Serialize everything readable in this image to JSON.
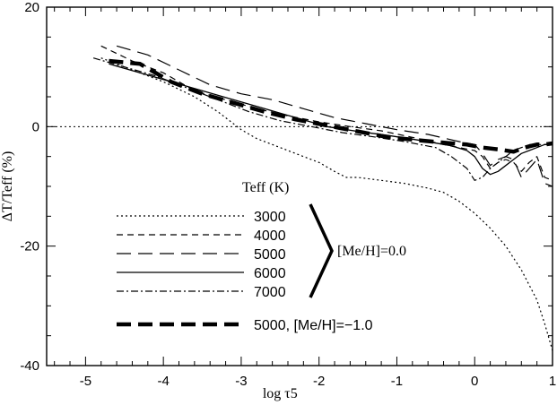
{
  "chart_data": {
    "type": "line",
    "xlabel": "log τ5",
    "ylabel": "ΔT/Teff (%)",
    "xlim": [
      -5.5,
      1.0
    ],
    "ylim": [
      -40,
      20
    ],
    "x_ticks": [
      -5,
      -4,
      -3,
      -2,
      -1,
      0,
      1
    ],
    "y_ticks": [
      20,
      0,
      -20,
      -40
    ],
    "reference_line": 0,
    "legend_title": "Teff (K)",
    "legend_group_label": "[Me/H]=0.0",
    "series": [
      {
        "name": "3000",
        "style": "dotted",
        "x": [
          -4.8,
          -4.4,
          -4.0,
          -3.6,
          -3.3,
          -3.0,
          -2.8,
          -2.6,
          -2.4,
          -2.2,
          -2.0,
          -1.8,
          -1.65,
          -1.5,
          -1.2,
          -0.9,
          -0.6,
          -0.4,
          -0.2,
          0.0,
          0.2,
          0.4,
          0.6,
          0.8,
          0.9,
          1.0
        ],
        "y": [
          11.5,
          9.5,
          7.5,
          5.0,
          2.5,
          -0.5,
          -2.0,
          -3.0,
          -4.0,
          -5.0,
          -6.0,
          -7.5,
          -8.5,
          -8.5,
          -9.0,
          -9.5,
          -10.3,
          -11.0,
          -12.5,
          -14.5,
          -17.0,
          -20.0,
          -24.0,
          -29.0,
          -33.0,
          -37.5
        ]
      },
      {
        "name": "4000",
        "style": "short-dash",
        "x": [
          -4.8,
          -4.4,
          -4.0,
          -3.6,
          -3.2,
          -2.8,
          -2.4,
          -2.0,
          -1.6,
          -1.2,
          -0.8,
          -0.4,
          -0.2,
          0.0,
          0.1,
          0.2,
          0.3,
          0.4,
          0.5,
          0.6,
          0.7,
          0.8,
          0.9,
          1.0
        ],
        "y": [
          13.5,
          11.0,
          9.0,
          6.0,
          4.5,
          3.0,
          1.8,
          0.8,
          0.0,
          -0.7,
          -1.8,
          -3.0,
          -3.5,
          -4.0,
          -5.0,
          -7.0,
          -6.0,
          -5.5,
          -6.0,
          -7.5,
          -6.0,
          -5.0,
          -8.5,
          -9.0
        ]
      },
      {
        "name": "5000",
        "style": "long-dash",
        "x": [
          -4.6,
          -4.2,
          -3.8,
          -3.4,
          -3.0,
          -2.6,
          -2.2,
          -1.8,
          -1.4,
          -1.0,
          -0.6,
          -0.2,
          0.0,
          0.1,
          0.2,
          0.3,
          0.4,
          0.5,
          0.6,
          0.7,
          0.8,
          0.9,
          1.0
        ],
        "y": [
          13.5,
          12.0,
          9.5,
          7.0,
          5.5,
          4.5,
          3.0,
          1.5,
          0.5,
          -0.5,
          -1.3,
          -2.5,
          -3.0,
          -4.5,
          -6.5,
          -5.5,
          -5.0,
          -5.5,
          -8.5,
          -7.0,
          -5.5,
          -9.5,
          -10.0
        ]
      },
      {
        "name": "6000",
        "style": "solid",
        "x": [
          -4.7,
          -4.3,
          -3.9,
          -3.5,
          -3.1,
          -2.7,
          -2.3,
          -1.9,
          -1.5,
          -1.1,
          -0.7,
          -0.3,
          -0.1,
          0.0,
          0.1,
          0.2,
          0.3,
          0.4,
          0.5,
          0.6,
          0.7,
          0.8,
          0.9,
          1.0
        ],
        "y": [
          10.5,
          9.0,
          7.5,
          6.0,
          4.5,
          3.0,
          1.5,
          0.0,
          -0.8,
          -1.5,
          -2.3,
          -3.2,
          -4.0,
          -5.0,
          -7.0,
          -8.0,
          -7.5,
          -6.5,
          -5.5,
          -4.5,
          -4.0,
          -3.5,
          -3.0,
          -3.0
        ]
      },
      {
        "name": "7000",
        "style": "dash-dot",
        "x": [
          -4.9,
          -4.5,
          -4.1,
          -3.7,
          -3.3,
          -2.9,
          -2.5,
          -2.1,
          -1.7,
          -1.3,
          -0.9,
          -0.5,
          -0.3,
          -0.1,
          0.0,
          0.1,
          0.2,
          0.3,
          0.4,
          0.5,
          0.6,
          0.7,
          0.8,
          0.9,
          1.0
        ],
        "y": [
          11.5,
          10.0,
          8.5,
          6.5,
          4.5,
          2.5,
          1.0,
          0.0,
          -1.0,
          -1.7,
          -2.5,
          -3.5,
          -5.0,
          -7.0,
          -9.0,
          -8.5,
          -7.0,
          -6.0,
          -5.0,
          -4.0,
          -3.5,
          -3.0,
          -3.0,
          -3.0,
          -3.0
        ]
      },
      {
        "name": "5000, [Me/H]=−1.0",
        "style": "thick-dash",
        "x": [
          -4.7,
          -4.3,
          -3.9,
          -3.5,
          -3.1,
          -2.7,
          -2.3,
          -1.9,
          -1.5,
          -1.1,
          -0.7,
          -0.3,
          -0.1,
          0.1,
          0.3,
          0.5,
          0.6,
          0.7,
          0.8,
          0.9,
          1.0
        ],
        "y": [
          11.0,
          10.5,
          7.5,
          5.5,
          4.0,
          2.5,
          1.2,
          0.2,
          -0.8,
          -1.8,
          -2.3,
          -2.8,
          -3.0,
          -3.5,
          -3.8,
          -4.2,
          -3.7,
          -3.3,
          -3.0,
          -3.0,
          -2.8
        ]
      }
    ]
  }
}
